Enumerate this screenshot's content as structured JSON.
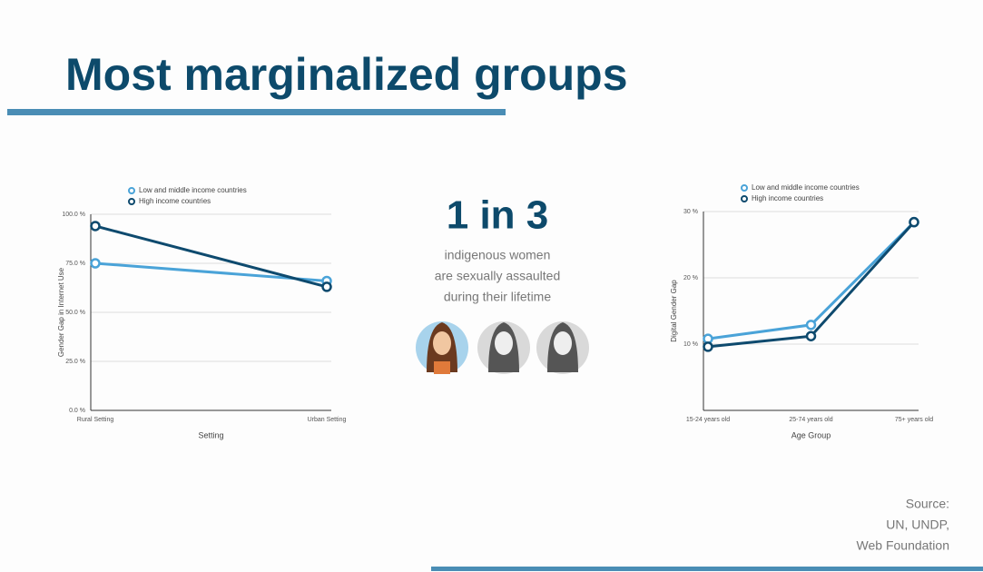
{
  "header": {
    "title": "Most marginalized groups"
  },
  "stat": {
    "value": "1 in 3",
    "lines": [
      "indigenous women",
      "are sexually assaulted",
      "during their lifetime"
    ]
  },
  "source": [
    "Source:",
    "UN, UNDP,",
    "Web Foundation"
  ],
  "chart_data": [
    {
      "type": "line",
      "x_label": "Setting",
      "y_label": "Gender Gap in Internet Use",
      "categories": [
        "Rural Setting",
        "Urban Setting"
      ],
      "series": [
        {
          "name": "Low and middle income countries",
          "color": "#4aa3d8",
          "values": [
            75,
            66
          ]
        },
        {
          "name": "High income countries",
          "color": "#0e4a6e",
          "values": [
            94,
            63
          ]
        }
      ],
      "ylim": [
        0,
        100
      ],
      "yticks": [
        {
          "value": 0,
          "label": "0.0 %"
        },
        {
          "value": 25,
          "label": "25.0 %"
        },
        {
          "value": 50,
          "label": "50.0 %"
        },
        {
          "value": 75,
          "label": "75.0 %"
        },
        {
          "value": 100,
          "label": "100.0 %"
        }
      ],
      "grid": true
    },
    {
      "type": "line",
      "x_label": "Age Group",
      "y_label": "Digital Gender Gap",
      "categories": [
        "15-24 years old",
        "25-74 years old",
        "75+ years old"
      ],
      "series": [
        {
          "name": "Low and middle income countries",
          "color": "#4aa3d8",
          "values": [
            10.8,
            12.9,
            28.4
          ]
        },
        {
          "name": "High income countries",
          "color": "#0e4a6e",
          "values": [
            9.6,
            11.2,
            28.4
          ]
        }
      ],
      "ylim": [
        0,
        30
      ],
      "yticks": [
        {
          "value": 10,
          "label": "10 %"
        },
        {
          "value": 20,
          "label": "20 %"
        },
        {
          "value": 30,
          "label": "30 %"
        }
      ],
      "grid": true
    }
  ]
}
